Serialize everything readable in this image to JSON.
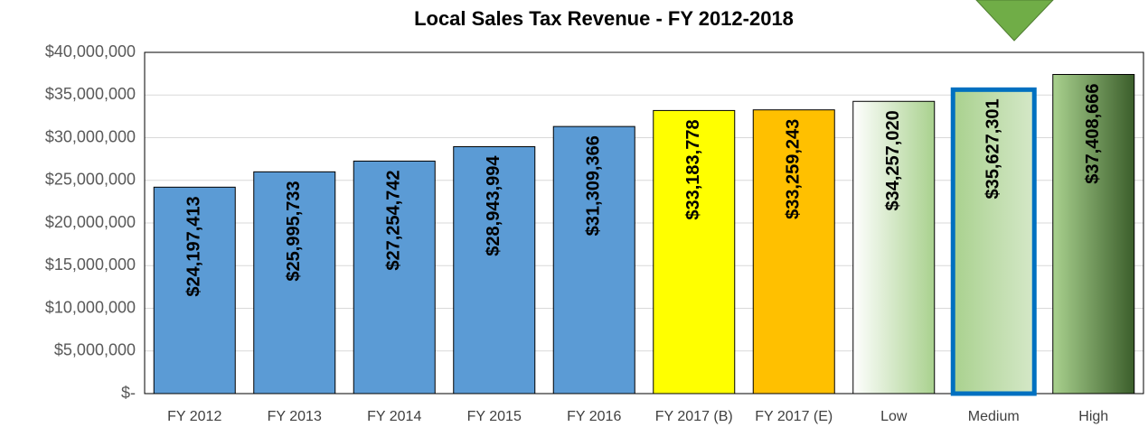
{
  "chart_data": {
    "type": "bar",
    "title": "Local Sales Tax Revenue - FY 2012-2018",
    "categories": [
      "FY 2012",
      "FY 2013",
      "FY 2014",
      "FY 2015",
      "FY 2016",
      "FY 2017 (B)",
      "FY 2017 (E)",
      "Low",
      "Medium",
      "High"
    ],
    "values": [
      24197413,
      25995733,
      27254742,
      28943994,
      31309366,
      33183778,
      33259243,
      34257020,
      35627301,
      37408666
    ],
    "value_labels": [
      "$24,197,413",
      "$25,995,733",
      "$27,254,742",
      "$28,943,994",
      "$31,309,366",
      "$33,183,778",
      "$33,259,243",
      "$34,257,020",
      "$35,627,301",
      "$37,408,666"
    ],
    "colors": [
      "#5b9bd5",
      "#5b9bd5",
      "#5b9bd5",
      "#5b9bd5",
      "#5b9bd5",
      "#ffff00",
      "#ffc000",
      [
        "#ffffff",
        "#a9d18e"
      ],
      [
        "#a9d18e",
        "#d5e8c8"
      ],
      [
        "#a9d18e",
        "#3b5e2b"
      ]
    ],
    "edgecolors": [
      "#000000",
      "#000000",
      "#000000",
      "#000000",
      "#000000",
      "#000000",
      "#000000",
      "#000000",
      "#0070c0",
      "#000000"
    ],
    "ylim": [
      0,
      40000000
    ],
    "yticks": [
      {
        "value": 0,
        "label": "$-"
      },
      {
        "value": 5000000,
        "label": "$5,000,000"
      },
      {
        "value": 10000000,
        "label": "$10,000,000"
      },
      {
        "value": 15000000,
        "label": "$15,000,000"
      },
      {
        "value": 20000000,
        "label": "$20,000,000"
      },
      {
        "value": 25000000,
        "label": "$25,000,000"
      },
      {
        "value": 30000000,
        "label": "$30,000,000"
      },
      {
        "value": 35000000,
        "label": "$35,000,000"
      },
      {
        "value": 40000000,
        "label": "$40,000,000"
      }
    ],
    "grid": true
  }
}
